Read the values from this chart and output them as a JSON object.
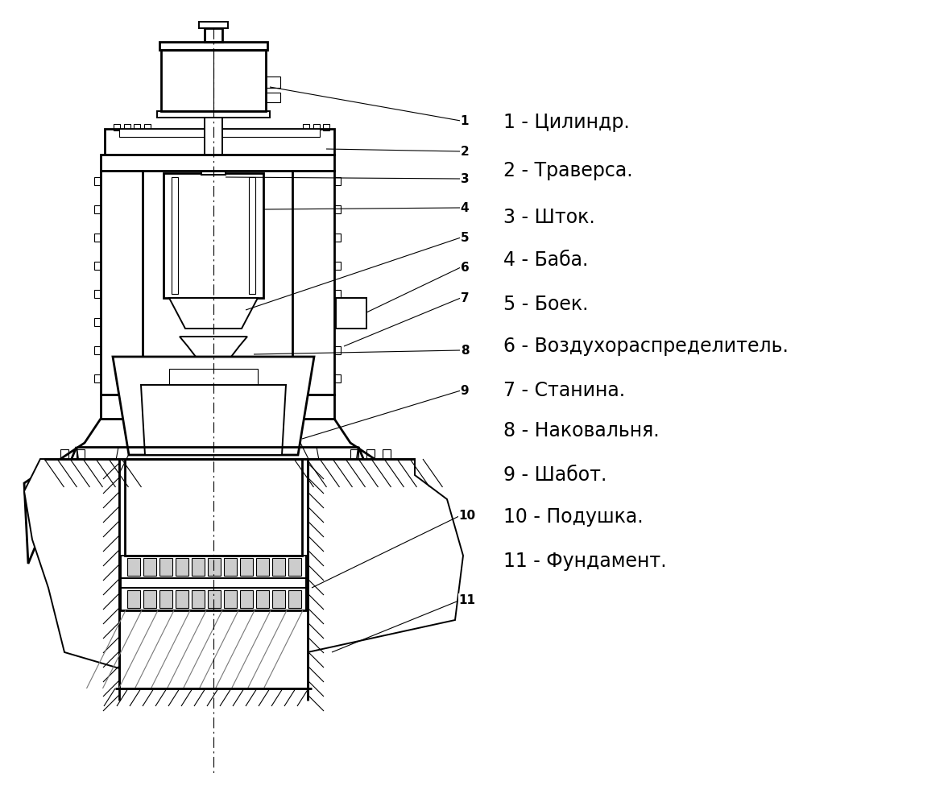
{
  "background_color": "#ffffff",
  "line_color": "#000000",
  "labels": [
    "1 - Цилиндр.",
    "2 - Траверса.",
    "3 - Шток.",
    "4 - Баба.",
    "5 - Боек.",
    "6 - Воздухораспределитель.",
    "7 - Станина.",
    "8 - Наковальня.",
    "9 - Шабот.",
    "10 - Подушка.",
    "11 - Фундамент."
  ],
  "label_fontsize": 17
}
